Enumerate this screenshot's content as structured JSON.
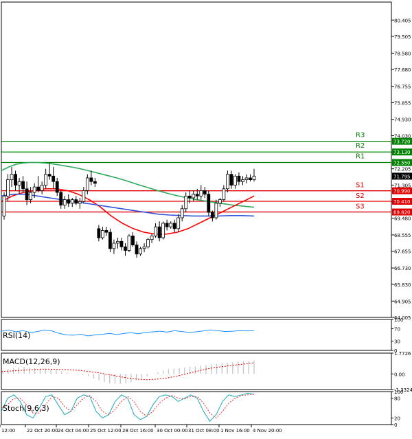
{
  "chart_data": [
    {
      "type": "candlestick",
      "title": "",
      "y_ticks": [
        80.405,
        79.505,
        78.58,
        77.68,
        76.755,
        75.855,
        74.93,
        74.03,
        73.13,
        72.205,
        71.305,
        70.38,
        69.48,
        68.555,
        67.655,
        66.73,
        65.83,
        64.905,
        64.005
      ],
      "ylim": [
        64.005,
        81.4
      ],
      "x_ticks": [
        "12:00",
        "22 Oct 20:00",
        "24 Oct 04:00",
        "25 Oct 12:00",
        "28 Oct 16:00",
        "30 Oct 00:00",
        "31 Oct 08:00",
        "1 Nov 16:00",
        "4 Nov 20:00"
      ],
      "price_tag": "71.795",
      "levels": [
        {
          "name": "R3",
          "value": 73.72,
          "tag": "73.720",
          "color": "#008000"
        },
        {
          "name": "R2",
          "value": 73.13,
          "tag": "73.130",
          "color": "#008000"
        },
        {
          "name": "R1",
          "value": 72.55,
          "tag": "72.550",
          "color": "#008000"
        },
        {
          "name": "S1",
          "value": 70.99,
          "tag": "70.990",
          "color": "#e00000"
        },
        {
          "name": "S2",
          "value": 70.41,
          "tag": "70.410",
          "color": "#e00000"
        },
        {
          "name": "S3",
          "value": 69.82,
          "tag": "69.820",
          "color": "#e00000"
        }
      ],
      "candles": [
        {
          "o": 69.6,
          "h": 70.9,
          "l": 69.4,
          "c": 70.7
        },
        {
          "o": 70.7,
          "h": 71.9,
          "l": 70.4,
          "c": 71.6
        },
        {
          "o": 71.6,
          "h": 72.3,
          "l": 71.2,
          "c": 71.9
        },
        {
          "o": 71.9,
          "h": 72.1,
          "l": 71.0,
          "c": 71.3
        },
        {
          "o": 71.3,
          "h": 71.7,
          "l": 70.8,
          "c": 71.5
        },
        {
          "o": 71.5,
          "h": 71.8,
          "l": 70.9,
          "c": 71.1
        },
        {
          "o": 71.1,
          "h": 71.5,
          "l": 70.2,
          "c": 70.5
        },
        {
          "o": 70.5,
          "h": 71.2,
          "l": 70.3,
          "c": 70.9
        },
        {
          "o": 70.9,
          "h": 71.4,
          "l": 70.6,
          "c": 71.2
        },
        {
          "o": 71.2,
          "h": 71.8,
          "l": 70.9,
          "c": 71.0
        },
        {
          "o": 71.0,
          "h": 71.5,
          "l": 70.8,
          "c": 71.3
        },
        {
          "o": 71.3,
          "h": 72.2,
          "l": 71.1,
          "c": 71.9
        },
        {
          "o": 71.9,
          "h": 72.5,
          "l": 71.6,
          "c": 71.8
        },
        {
          "o": 71.8,
          "h": 72.3,
          "l": 71.1,
          "c": 71.5
        },
        {
          "o": 71.5,
          "h": 71.7,
          "l": 70.7,
          "c": 70.9
        },
        {
          "o": 70.9,
          "h": 71.0,
          "l": 70.0,
          "c": 70.2
        },
        {
          "o": 70.2,
          "h": 70.7,
          "l": 70.0,
          "c": 70.5
        },
        {
          "o": 70.5,
          "h": 70.8,
          "l": 70.1,
          "c": 70.3
        },
        {
          "o": 70.3,
          "h": 70.6,
          "l": 70.1,
          "c": 70.5
        },
        {
          "o": 70.5,
          "h": 70.7,
          "l": 70.2,
          "c": 70.3
        },
        {
          "o": 70.3,
          "h": 70.6,
          "l": 70.0,
          "c": 70.4
        },
        {
          "o": 70.4,
          "h": 71.2,
          "l": 70.3,
          "c": 71.0
        },
        {
          "o": 71.0,
          "h": 71.9,
          "l": 70.8,
          "c": 71.7
        },
        {
          "o": 71.7,
          "h": 72.1,
          "l": 71.3,
          "c": 71.5
        },
        {
          "o": 71.5,
          "h": 71.7,
          "l": 71.2,
          "c": 71.4
        },
        {
          "o": 68.9,
          "h": 69.1,
          "l": 68.2,
          "c": 68.4
        },
        {
          "o": 68.4,
          "h": 69.0,
          "l": 68.3,
          "c": 68.8
        },
        {
          "o": 68.8,
          "h": 69.0,
          "l": 68.5,
          "c": 68.7
        },
        {
          "o": 68.7,
          "h": 68.9,
          "l": 67.6,
          "c": 67.8
        },
        {
          "o": 67.8,
          "h": 68.3,
          "l": 67.5,
          "c": 68.1
        },
        {
          "o": 68.1,
          "h": 68.4,
          "l": 67.8,
          "c": 68.2
        },
        {
          "o": 68.2,
          "h": 68.4,
          "l": 67.7,
          "c": 67.9
        },
        {
          "o": 67.9,
          "h": 68.1,
          "l": 67.4,
          "c": 67.7
        },
        {
          "o": 67.7,
          "h": 68.6,
          "l": 67.6,
          "c": 68.5
        },
        {
          "o": 68.5,
          "h": 68.7,
          "l": 67.9,
          "c": 68.0
        },
        {
          "o": 68.0,
          "h": 68.2,
          "l": 67.3,
          "c": 67.5
        },
        {
          "o": 67.5,
          "h": 67.9,
          "l": 67.4,
          "c": 67.8
        },
        {
          "o": 67.8,
          "h": 68.1,
          "l": 67.6,
          "c": 67.9
        },
        {
          "o": 67.9,
          "h": 68.4,
          "l": 67.8,
          "c": 68.3
        },
        {
          "o": 68.3,
          "h": 68.6,
          "l": 68.1,
          "c": 68.5
        },
        {
          "o": 68.5,
          "h": 69.2,
          "l": 68.4,
          "c": 69.0
        },
        {
          "o": 69.0,
          "h": 69.3,
          "l": 68.2,
          "c": 68.4
        },
        {
          "o": 68.4,
          "h": 69.3,
          "l": 68.3,
          "c": 69.2
        },
        {
          "o": 69.2,
          "h": 69.4,
          "l": 68.8,
          "c": 69.0
        },
        {
          "o": 69.0,
          "h": 69.3,
          "l": 68.9,
          "c": 69.2
        },
        {
          "o": 69.2,
          "h": 69.4,
          "l": 68.7,
          "c": 68.9
        },
        {
          "o": 68.9,
          "h": 69.7,
          "l": 68.7,
          "c": 69.5
        },
        {
          "o": 69.5,
          "h": 70.2,
          "l": 69.3,
          "c": 70.0
        },
        {
          "o": 70.0,
          "h": 70.9,
          "l": 69.8,
          "c": 70.7
        },
        {
          "o": 70.7,
          "h": 71.0,
          "l": 70.3,
          "c": 70.6
        },
        {
          "o": 70.6,
          "h": 71.0,
          "l": 70.4,
          "c": 70.8
        },
        {
          "o": 70.8,
          "h": 71.1,
          "l": 70.5,
          "c": 70.7
        },
        {
          "o": 70.7,
          "h": 71.3,
          "l": 70.5,
          "c": 71.0
        },
        {
          "o": 71.0,
          "h": 71.2,
          "l": 70.6,
          "c": 70.8
        },
        {
          "o": 70.8,
          "h": 71.0,
          "l": 69.6,
          "c": 69.8
        },
        {
          "o": 69.8,
          "h": 69.9,
          "l": 69.3,
          "c": 69.5
        },
        {
          "o": 69.5,
          "h": 70.5,
          "l": 69.4,
          "c": 70.3
        },
        {
          "o": 70.3,
          "h": 70.6,
          "l": 70.1,
          "c": 70.5
        },
        {
          "o": 70.5,
          "h": 71.3,
          "l": 70.4,
          "c": 71.1
        },
        {
          "o": 71.1,
          "h": 72.1,
          "l": 70.9,
          "c": 71.9
        },
        {
          "o": 71.9,
          "h": 72.1,
          "l": 71.1,
          "c": 71.3
        },
        {
          "o": 71.3,
          "h": 71.9,
          "l": 71.1,
          "c": 71.8
        },
        {
          "o": 71.8,
          "h": 72.0,
          "l": 71.3,
          "c": 71.5
        },
        {
          "o": 71.5,
          "h": 71.8,
          "l": 71.3,
          "c": 71.6
        },
        {
          "o": 71.6,
          "h": 71.9,
          "l": 71.4,
          "c": 71.7
        },
        {
          "o": 71.7,
          "h": 71.9,
          "l": 71.5,
          "c": 71.6
        },
        {
          "o": 71.6,
          "h": 72.2,
          "l": 71.5,
          "c": 71.8
        }
      ],
      "series": [
        {
          "color": "#2eaa5c",
          "values": [
            72.1,
            72.3,
            72.45,
            72.52,
            72.55,
            72.55,
            72.52,
            72.48,
            72.42,
            72.35,
            72.28,
            72.2,
            72.1,
            72.0,
            71.9,
            71.8,
            71.7,
            71.58,
            71.45,
            71.32,
            71.2,
            71.08,
            70.96,
            70.85,
            70.75,
            70.66,
            70.58,
            70.5,
            70.44,
            70.38,
            70.32,
            70.26,
            70.2,
            70.16,
            70.12,
            70.08
          ]
        },
        {
          "color": "#ff0000",
          "values": [
            70.4,
            70.7,
            70.9,
            71.0,
            71.1,
            71.1,
            71.0,
            70.8,
            70.5,
            70.1,
            69.6,
            69.2,
            68.9,
            68.7,
            68.6,
            68.6,
            68.7,
            68.9,
            69.2,
            69.5,
            69.8,
            70.1,
            70.4,
            70.7
          ]
        },
        {
          "color": "#3355dd",
          "values": [
            70.7,
            70.8,
            70.8,
            70.7,
            70.6,
            70.5,
            70.4,
            70.3,
            70.2,
            70.1,
            70.0,
            69.9,
            69.8,
            69.7,
            69.65,
            69.62,
            69.6,
            69.6,
            69.6,
            69.62,
            69.62,
            69.6
          ]
        }
      ]
    },
    {
      "type": "line",
      "title": "RSI(14)",
      "y_ticks": [
        100,
        70,
        30,
        0
      ],
      "ylim": [
        0,
        100
      ],
      "series": [
        {
          "color": "#1e90ff",
          "values": [
            62,
            66,
            60,
            64,
            58,
            61,
            66,
            63,
            55,
            50,
            49,
            52,
            47,
            50,
            52,
            55,
            51,
            55,
            57,
            54,
            58,
            60,
            62,
            59,
            64,
            61,
            58,
            60,
            63,
            66,
            64,
            61,
            62,
            64,
            63,
            64
          ]
        }
      ]
    },
    {
      "type": "bar",
      "title": "MACD(12,26,9)",
      "y_ticks": [
        "1.7726",
        "0.00",
        "-1.3324"
      ],
      "ylim": [
        -1.3324,
        1.7726
      ],
      "series": [
        {
          "name": "",
          "values": [
            0.3,
            0.4,
            0.5,
            0.55,
            0.6,
            0.55,
            0.5,
            0.45,
            0.4,
            0.35,
            0.3,
            0.2,
            0.1,
            0.0,
            -0.05,
            -0.1,
            -0.2,
            -0.4,
            -0.55,
            -0.7,
            -0.8,
            -0.85,
            -0.85,
            -0.8,
            -0.7,
            -0.55,
            -0.4,
            -0.2,
            0.0,
            0.15,
            0.3,
            0.4,
            0.45,
            0.5,
            0.55,
            0.6,
            0.65,
            0.7,
            0.75,
            0.8,
            0.85,
            0.9,
            0.95,
            1.0,
            1.05,
            1.1,
            1.1,
            1.15
          ]
        },
        {
          "name": "",
          "values": [
            0.2,
            0.25,
            0.3,
            0.35,
            0.4,
            0.4,
            0.38,
            0.35,
            0.3,
            0.2,
            0.1,
            -0.05,
            -0.2,
            -0.35,
            -0.45,
            -0.5,
            -0.45,
            -0.35,
            -0.2,
            0.0,
            0.2,
            0.4,
            0.55,
            0.65,
            0.75,
            0.85,
            0.95
          ]
        }
      ]
    },
    {
      "type": "line",
      "title": "Stoch(9,6,3)",
      "y_ticks": [
        100,
        80,
        20,
        0
      ],
      "ylim": [
        0,
        100
      ],
      "series": [
        {
          "color": "#1aa8b8",
          "values": [
            40,
            80,
            90,
            70,
            30,
            20,
            50,
            85,
            90,
            60,
            30,
            40,
            80,
            90,
            85,
            40,
            20,
            30,
            70,
            90,
            80,
            30,
            15,
            25,
            60,
            85,
            90,
            85,
            70,
            80,
            90,
            80,
            40,
            10,
            30,
            70,
            90,
            85,
            90,
            95,
            92
          ]
        },
        {
          "color": "#e83030",
          "values": [
            50,
            60,
            80,
            80,
            60,
            35,
            35,
            60,
            85,
            80,
            55,
            40,
            60,
            80,
            88,
            70,
            40,
            30,
            45,
            70,
            85,
            70,
            40,
            25,
            40,
            65,
            80,
            88,
            80,
            78,
            85,
            85,
            65,
            35,
            20,
            40,
            65,
            80,
            88,
            90,
            92
          ]
        }
      ]
    }
  ]
}
